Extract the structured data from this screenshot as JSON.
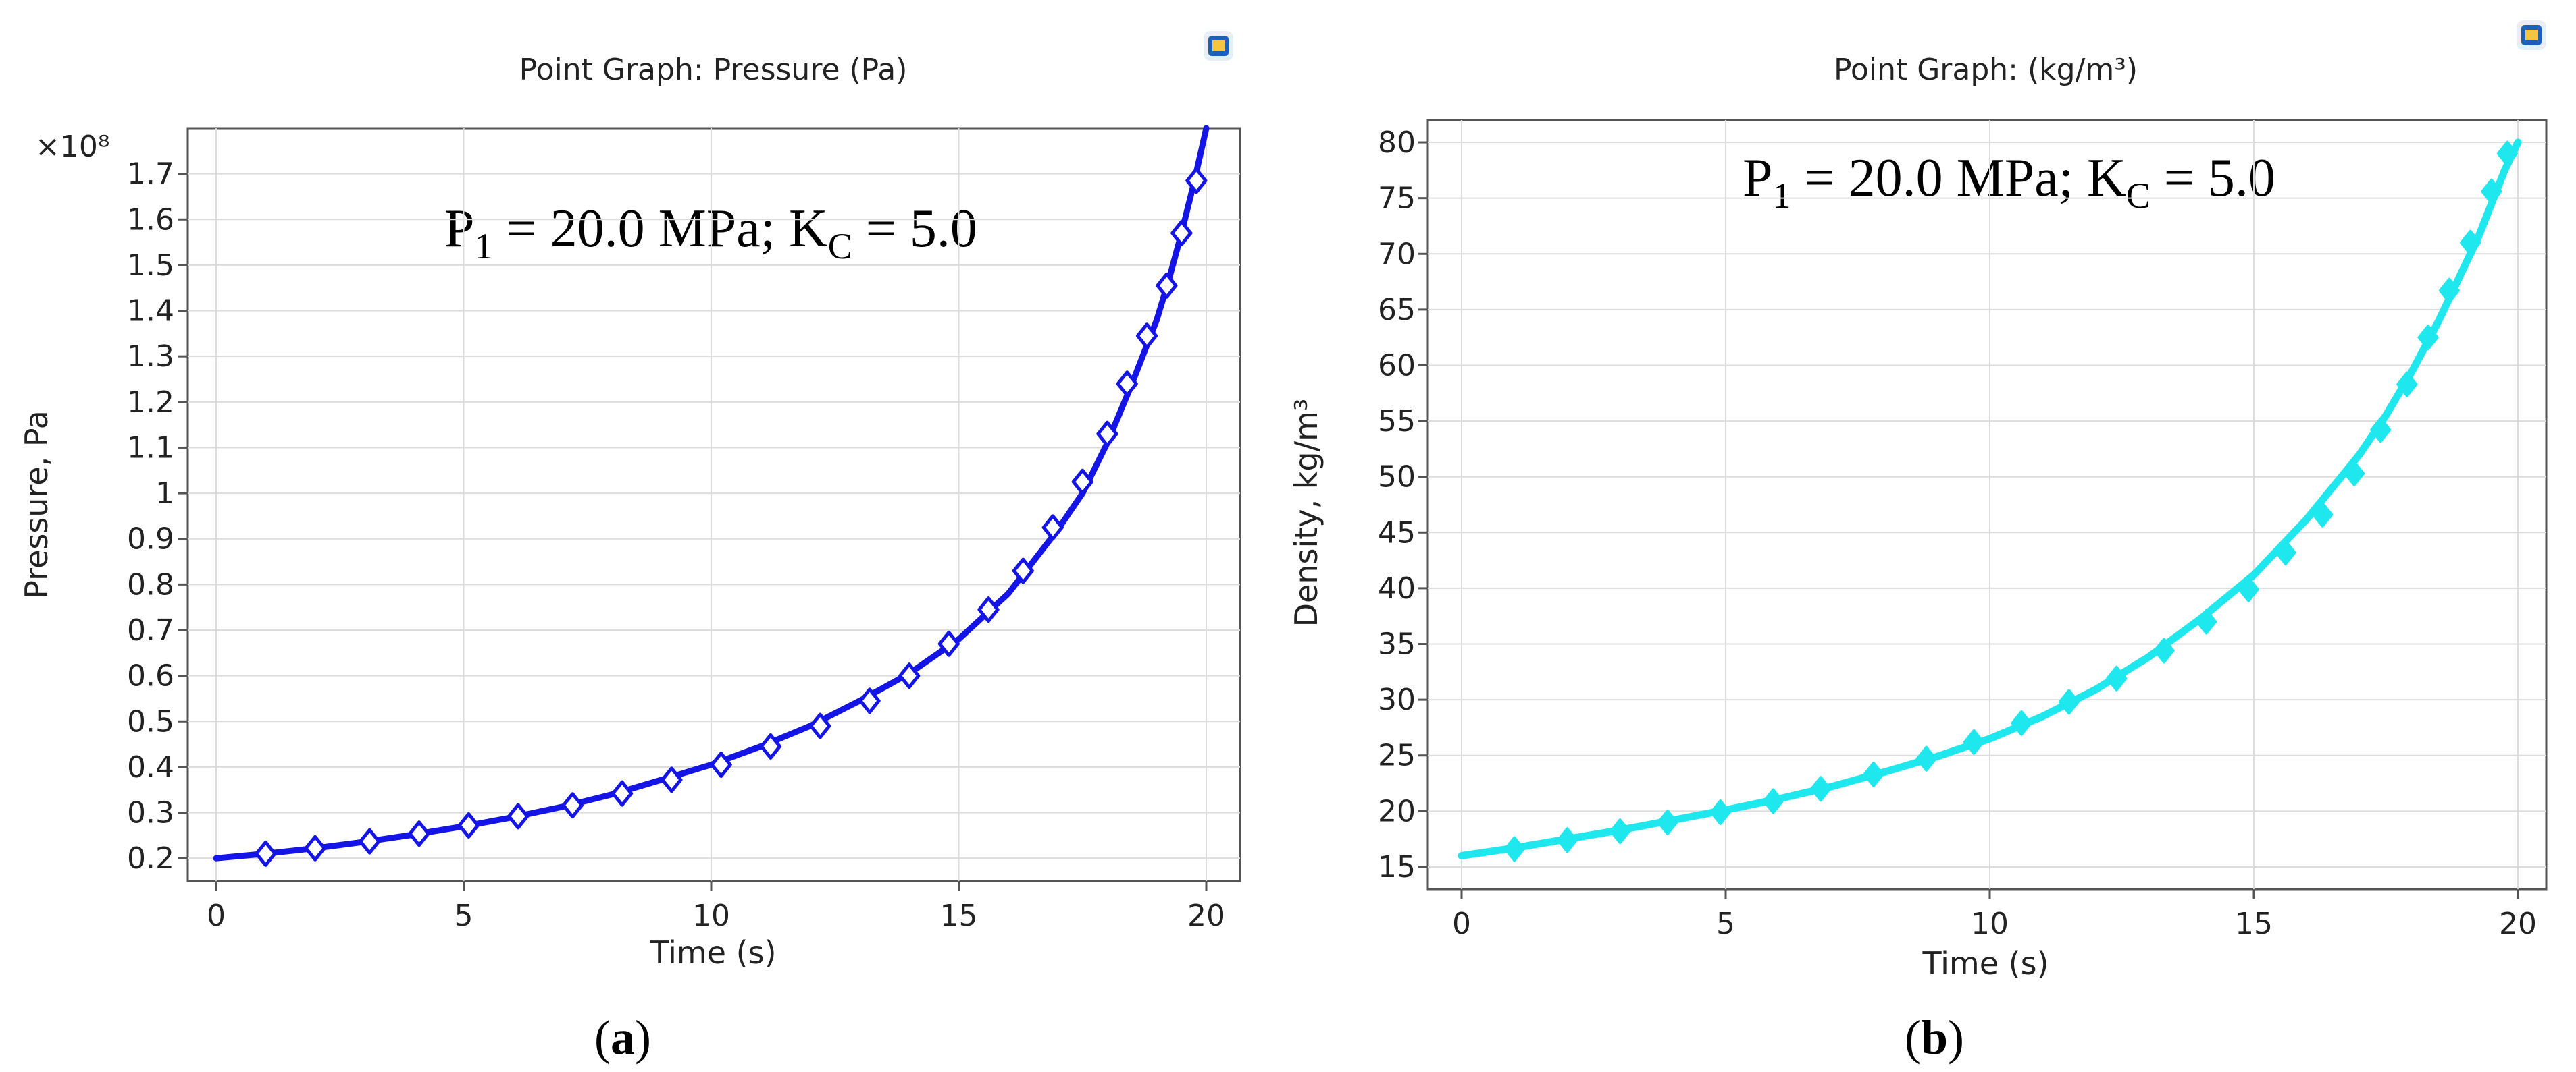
{
  "chart_data": [
    {
      "type": "line",
      "panel_label": "a",
      "title": "Point Graph: Pressure (Pa)",
      "xlabel": "Time (s)",
      "ylabel": "Pressure, Pa",
      "y_exponent": "×10⁸",
      "xlim": [
        0,
        20
      ],
      "ylim": [
        0.15,
        1.8
      ],
      "xticks": [
        "0",
        "5",
        "10",
        "15",
        "20"
      ],
      "yticks": [
        "0.2",
        "0.3",
        "0.4",
        "0.5",
        "0.6",
        "0.7",
        "0.8",
        "0.9",
        "1",
        "1.1",
        "1.2",
        "1.3",
        "1.4",
        "1.5",
        "1.6",
        "1.7"
      ],
      "xtick_values": [
        0,
        5,
        10,
        15,
        20
      ],
      "ytick_values": [
        0.2,
        0.3,
        0.4,
        0.5,
        0.6,
        0.7,
        0.8,
        0.9,
        1.0,
        1.1,
        1.2,
        1.3,
        1.4,
        1.5,
        1.6,
        1.7
      ],
      "annotation": {
        "p": "P",
        "p_sub": "1",
        "p_rest": " = 20.0 MPa; K",
        "k_sub": "C",
        "k_rest": " = 5.0"
      },
      "series": [
        {
          "name": "Pressure",
          "color": "#1414e6",
          "marker": "diamond",
          "x": [
            0,
            1,
            2,
            3,
            4,
            5,
            6,
            7,
            8,
            9,
            10,
            11,
            12,
            13,
            14,
            15,
            16,
            17,
            17.5,
            18,
            18.5,
            19,
            19.25,
            19.5,
            19.75,
            20
          ],
          "y": [
            0.2,
            0.21,
            0.222,
            0.236,
            0.252,
            0.27,
            0.29,
            0.313,
            0.34,
            0.372,
            0.405,
            0.445,
            0.49,
            0.545,
            0.605,
            0.68,
            0.78,
            0.92,
            1.0,
            1.11,
            1.24,
            1.38,
            1.47,
            1.57,
            1.68,
            1.8
          ],
          "markers_x": [
            1.0,
            2.0,
            3.1,
            4.1,
            5.1,
            6.1,
            7.2,
            8.2,
            9.2,
            10.2,
            11.2,
            12.2,
            13.2,
            14.0,
            14.8,
            15.6,
            16.3,
            16.9,
            17.5,
            18.0,
            18.4,
            18.8,
            19.2,
            19.5,
            19.8
          ],
          "markers_y": [
            0.21,
            0.222,
            0.237,
            0.254,
            0.272,
            0.292,
            0.316,
            0.342,
            0.372,
            0.405,
            0.445,
            0.49,
            0.545,
            0.6,
            0.67,
            0.745,
            0.83,
            0.925,
            1.025,
            1.13,
            1.24,
            1.345,
            1.455,
            1.57,
            1.685
          ]
        }
      ]
    },
    {
      "type": "line",
      "panel_label": "b",
      "title": "Point Graph:  (kg/m³)",
      "xlabel": "Time (s)",
      "ylabel": "Density, kg/m³",
      "xlim": [
        0,
        20
      ],
      "ylim": [
        13,
        82
      ],
      "xticks": [
        "0",
        "5",
        "10",
        "15",
        "20"
      ],
      "yticks": [
        "15",
        "20",
        "25",
        "30",
        "35",
        "40",
        "45",
        "50",
        "55",
        "60",
        "65",
        "70",
        "75",
        "80"
      ],
      "xtick_values": [
        0,
        5,
        10,
        15,
        20
      ],
      "ytick_values": [
        15,
        20,
        25,
        30,
        35,
        40,
        45,
        50,
        55,
        60,
        65,
        70,
        75,
        80
      ],
      "annotation": {
        "p": "P",
        "p_sub": "1",
        "p_rest": " = 20.0 MPa; K",
        "k_sub": "C",
        "k_rest": " = 5.0"
      },
      "series": [
        {
          "name": "Density",
          "color": "#1ee8ee",
          "marker": "diamond",
          "x": [
            0,
            1,
            2,
            3,
            4,
            5,
            6,
            7,
            8,
            9,
            10,
            11,
            12,
            13,
            14,
            15,
            16,
            17,
            17.5,
            18,
            18.5,
            19,
            19.25,
            19.5,
            19.75,
            20
          ],
          "y": [
            16,
            16.7,
            17.5,
            18.3,
            19.2,
            20.1,
            21.1,
            22.2,
            23.5,
            24.9,
            26.5,
            28.5,
            30.9,
            33.8,
            37.3,
            41.2,
            46.2,
            52.0,
            55.5,
            59.5,
            64.0,
            69.0,
            71.5,
            74.5,
            77.5,
            80.0
          ],
          "markers_x": [
            1.0,
            2.0,
            3.0,
            3.9,
            4.9,
            5.9,
            6.8,
            7.8,
            8.8,
            9.7,
            10.6,
            11.5,
            12.4,
            13.3,
            14.1,
            14.9,
            15.6,
            16.3,
            16.9,
            17.4,
            17.9,
            18.3,
            18.7,
            19.1,
            19.5,
            19.8
          ],
          "markers_y": [
            16.6,
            17.4,
            18.2,
            19.0,
            19.9,
            20.9,
            22.0,
            23.3,
            24.7,
            26.2,
            27.9,
            29.8,
            31.9,
            34.4,
            37.0,
            39.9,
            43.2,
            46.6,
            50.3,
            54.2,
            58.3,
            62.5,
            66.7,
            71.0,
            75.6,
            79.0
          ]
        }
      ]
    }
  ]
}
